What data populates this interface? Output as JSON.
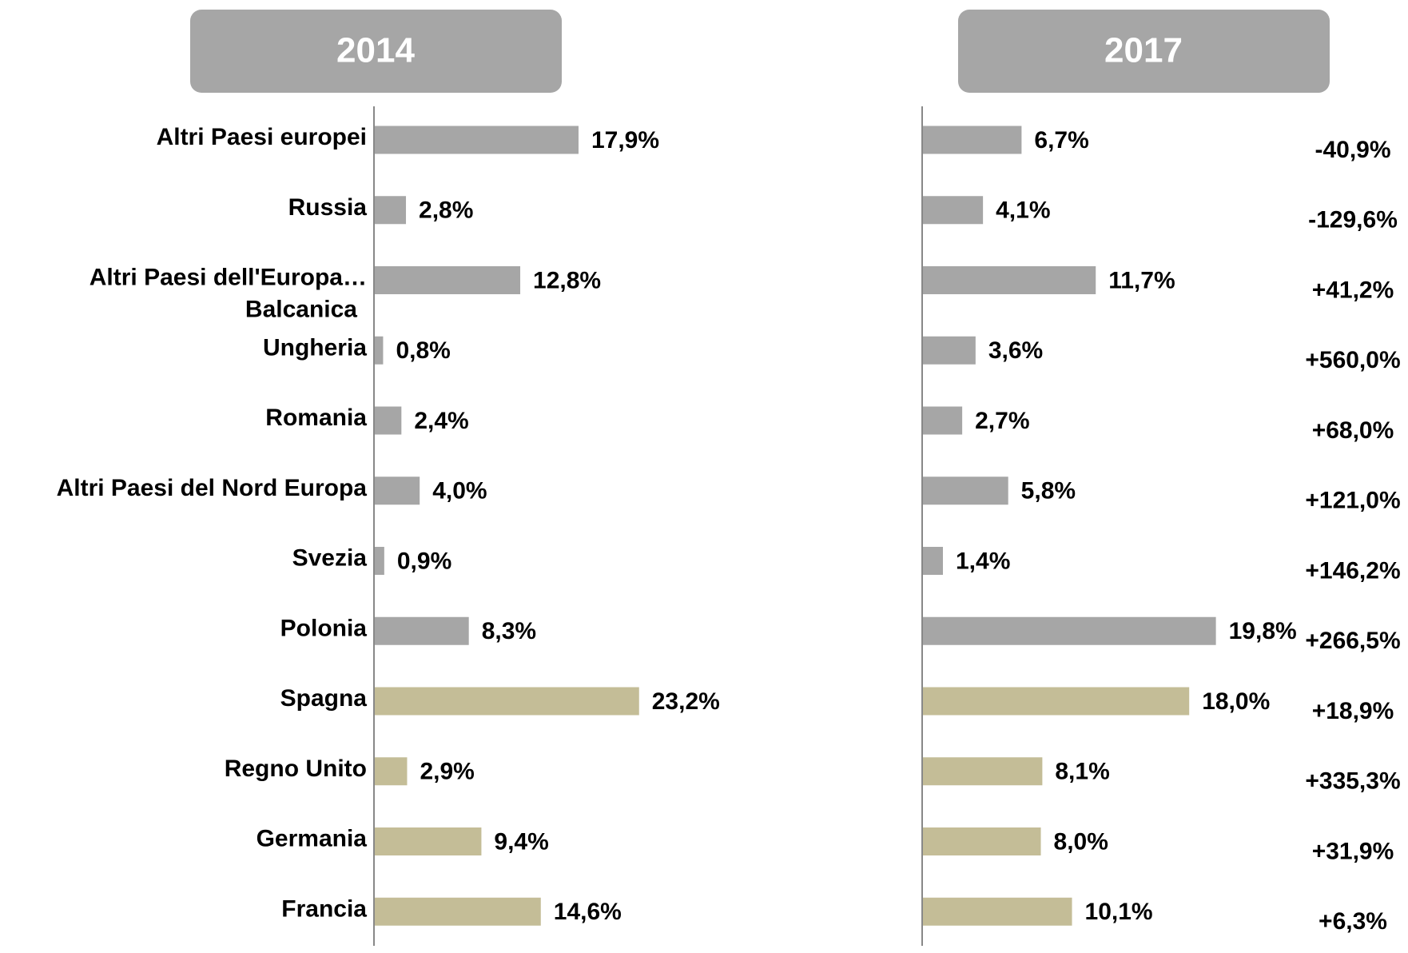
{
  "chart_data": {
    "type": "bar",
    "orientation": "horizontal",
    "categories": [
      "Altri Paesi europei",
      "Russia",
      "Altri Paesi dell'Europa…\nBalcanica",
      "Ungheria",
      "Romania",
      "Altri Paesi del Nord Europa",
      "Svezia",
      "Polonia",
      "Spagna",
      "Regno Unito",
      "Germania",
      "Francia"
    ],
    "bar_colors": [
      "#a6a6a6",
      "#a6a6a6",
      "#a6a6a6",
      "#a6a6a6",
      "#a6a6a6",
      "#a6a6a6",
      "#a6a6a6",
      "#a6a6a6",
      "#c4bd97",
      "#c4bd97",
      "#c4bd97",
      "#c4bd97"
    ],
    "series": [
      {
        "name": "2014",
        "xlim": [
          0,
          30
        ],
        "values": [
          17.9,
          2.8,
          12.8,
          0.8,
          2.4,
          4.0,
          0.9,
          8.3,
          23.2,
          2.9,
          9.4,
          14.6
        ],
        "value_labels": [
          "17,9%",
          "2,8%",
          "12,8%",
          "0,8%",
          "2,4%",
          "4,0%",
          "0,9%",
          "8,3%",
          "23,2%",
          "2,9%",
          "9,4%",
          "14,6%"
        ]
      },
      {
        "name": "2017",
        "xlim": [
          0,
          30
        ],
        "values": [
          6.7,
          4.1,
          11.7,
          3.6,
          2.7,
          5.8,
          1.4,
          19.8,
          18.0,
          8.1,
          8.0,
          10.1
        ],
        "value_labels": [
          "6,7%",
          "4,1%",
          "11,7%",
          "3,6%",
          "2,7%",
          "5,8%",
          "1,4%",
          "19,8%",
          "18,0%",
          "8,1%",
          "8,0%",
          "10,1%"
        ]
      }
    ],
    "change": {
      "values": [
        -40.9,
        -129.6,
        41.2,
        560.0,
        68.0,
        121.0,
        146.2,
        266.5,
        18.9,
        335.3,
        31.9,
        6.3
      ],
      "value_labels": [
        "-40,9%",
        "-129,6%",
        "+41,2%",
        "+560,0%",
        "+68,0%",
        "+121,0%",
        "+146,2%",
        "+266,5%",
        "+18,9%",
        "+335,3%",
        "+31,9%",
        "+6,3%"
      ]
    }
  }
}
